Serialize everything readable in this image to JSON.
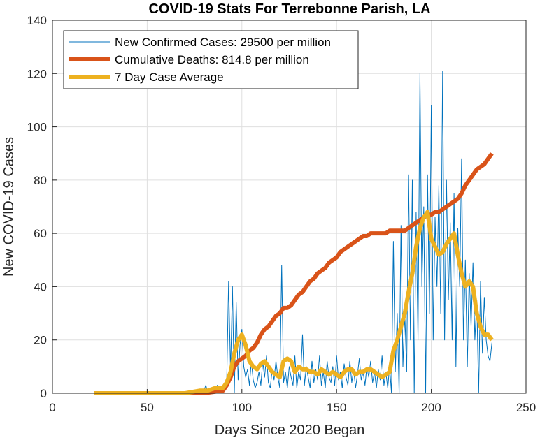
{
  "chart_data": {
    "type": "line",
    "title": "COVID-19 Stats For Terrebonne Parish, LA",
    "xlabel": "Days Since 2020 Began",
    "ylabel": "New COVID-19 Cases",
    "xlim": [
      0,
      250
    ],
    "ylim": [
      0,
      140
    ],
    "xticks": [
      0,
      50,
      100,
      150,
      200,
      250
    ],
    "yticks": [
      0,
      20,
      40,
      60,
      80,
      100,
      120,
      140
    ],
    "grid": true,
    "legend_position": "top-left",
    "series": [
      {
        "name": "New Confirmed Cases: 29500 per million",
        "color": "#0072BD",
        "style": "thin",
        "x": [
          22,
          30,
          40,
          50,
          60,
          70,
          75,
          78,
          80,
          81,
          82,
          83,
          84,
          85,
          86,
          87,
          88,
          89,
          90,
          91,
          92,
          93,
          94,
          95,
          96,
          97,
          98,
          99,
          100,
          101,
          102,
          103,
          104,
          105,
          106,
          107,
          108,
          109,
          110,
          111,
          112,
          113,
          114,
          115,
          116,
          117,
          118,
          119,
          120,
          121,
          122,
          123,
          124,
          125,
          126,
          127,
          128,
          129,
          130,
          131,
          132,
          133,
          134,
          135,
          136,
          137,
          138,
          139,
          140,
          141,
          142,
          143,
          144,
          145,
          146,
          147,
          148,
          149,
          150,
          151,
          152,
          153,
          154,
          155,
          156,
          157,
          158,
          159,
          160,
          161,
          162,
          163,
          164,
          165,
          166,
          167,
          168,
          169,
          170,
          171,
          172,
          173,
          174,
          175,
          176,
          177,
          178,
          179,
          180,
          181,
          182,
          183,
          184,
          185,
          186,
          187,
          188,
          189,
          190,
          191,
          192,
          193,
          194,
          195,
          196,
          197,
          198,
          199,
          200,
          201,
          202,
          203,
          204,
          205,
          206,
          207,
          208,
          209,
          210,
          211,
          212,
          213,
          214,
          215,
          216,
          217,
          218,
          219,
          220,
          221,
          222,
          223,
          224,
          225,
          226,
          227,
          228,
          229,
          230,
          231,
          232
        ],
        "y": [
          0,
          0,
          0,
          0,
          0,
          0,
          0,
          0,
          1,
          3,
          0,
          1,
          2,
          0,
          0,
          3,
          1,
          0,
          2,
          1,
          4,
          42,
          8,
          40,
          0,
          34,
          5,
          18,
          24,
          10,
          6,
          9,
          3,
          12,
          5,
          2,
          4,
          8,
          3,
          12,
          6,
          14,
          4,
          2,
          9,
          5,
          12,
          6,
          2,
          48,
          4,
          8,
          2,
          10,
          6,
          3,
          14,
          2,
          8,
          5,
          22,
          3,
          10,
          6,
          2,
          12,
          4,
          9,
          5,
          14,
          3,
          8,
          2,
          12,
          6,
          4,
          10,
          3,
          14,
          5,
          8,
          2,
          11,
          6,
          3,
          12,
          4,
          9,
          2,
          7,
          13,
          5,
          8,
          3,
          10,
          6,
          12,
          4,
          8,
          2,
          9,
          5,
          14,
          3,
          8,
          2,
          10,
          0,
          57,
          8,
          30,
          0,
          63,
          10,
          30,
          8,
          82,
          20,
          80,
          0,
          68,
          20,
          120,
          40,
          70,
          0,
          82,
          30,
          108,
          20,
          66,
          40,
          78,
          30,
          121,
          20,
          80,
          35,
          64,
          20,
          75,
          10,
          62,
          40,
          88,
          20,
          50,
          10,
          45,
          25,
          49,
          20,
          35,
          0,
          42,
          15,
          36,
          20,
          14,
          12,
          19
        ]
      },
      {
        "name": "Cumulative Deaths: 814.8 per million",
        "color": "#D95319",
        "style": "thick",
        "x": [
          22,
          80,
          90,
          92,
          94,
          96,
          98,
          100,
          102,
          104,
          106,
          108,
          110,
          112,
          114,
          116,
          118,
          120,
          122,
          124,
          126,
          128,
          130,
          132,
          134,
          136,
          138,
          140,
          142,
          144,
          146,
          148,
          150,
          152,
          154,
          156,
          158,
          160,
          162,
          164,
          166,
          168,
          170,
          172,
          174,
          176,
          178,
          180,
          182,
          184,
          186,
          188,
          190,
          192,
          194,
          196,
          198,
          200,
          202,
          204,
          206,
          208,
          210,
          212,
          214,
          216,
          218,
          220,
          222,
          224,
          226,
          228,
          230,
          232
        ],
        "y": [
          0,
          0,
          1,
          3,
          6,
          10,
          12,
          13,
          14,
          16,
          17,
          19,
          22,
          24,
          25,
          27,
          29,
          30,
          32,
          32,
          33,
          35,
          37,
          38,
          40,
          42,
          43,
          45,
          46,
          47,
          49,
          50,
          51,
          53,
          54,
          55,
          56,
          57,
          58,
          59,
          59,
          60,
          60,
          60,
          60,
          60,
          61,
          61,
          61,
          61,
          61,
          62,
          63,
          64,
          65,
          66,
          67,
          67,
          68,
          68,
          69,
          70,
          71,
          72,
          73,
          75,
          78,
          80,
          82,
          84,
          85,
          86,
          88,
          90
        ]
      },
      {
        "name": "7 Day Case Average",
        "color": "#EDB120",
        "style": "thick",
        "x": [
          22,
          50,
          70,
          78,
          82,
          86,
          90,
          92,
          94,
          96,
          98,
          100,
          102,
          104,
          106,
          108,
          110,
          112,
          114,
          116,
          118,
          120,
          122,
          124,
          126,
          128,
          130,
          132,
          134,
          136,
          138,
          140,
          142,
          144,
          146,
          148,
          150,
          152,
          154,
          156,
          158,
          160,
          162,
          164,
          166,
          168,
          170,
          172,
          174,
          176,
          178,
          180,
          182,
          184,
          186,
          188,
          190,
          192,
          194,
          196,
          198,
          200,
          202,
          204,
          206,
          208,
          210,
          212,
          214,
          216,
          218,
          220,
          222,
          224,
          226,
          228,
          230,
          232
        ],
        "y": [
          0,
          0,
          0,
          1,
          1,
          2,
          2,
          4,
          8,
          15,
          20,
          22,
          18,
          12,
          10,
          9,
          11,
          12,
          10,
          8,
          7,
          6,
          12,
          13,
          12,
          8,
          10,
          9,
          9,
          8,
          8,
          7,
          9,
          8,
          7,
          8,
          7,
          6,
          8,
          9,
          9,
          7,
          8,
          8,
          9,
          9,
          8,
          7,
          6,
          7,
          8,
          16,
          20,
          25,
          30,
          38,
          45,
          55,
          62,
          66,
          68,
          58,
          55,
          52,
          53,
          56,
          58,
          60,
          52,
          45,
          40,
          42,
          40,
          30,
          25,
          22,
          22,
          20
        ]
      }
    ]
  }
}
